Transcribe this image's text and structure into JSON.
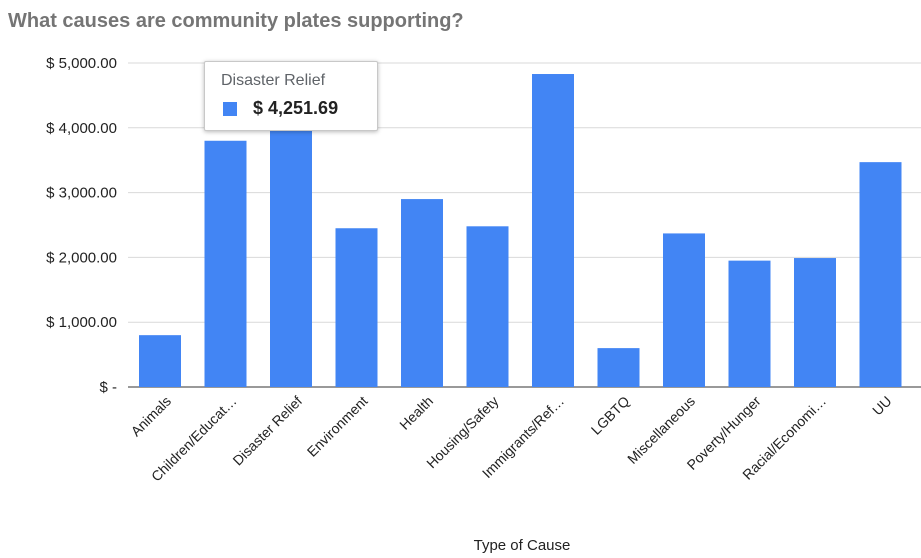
{
  "chart_data": {
    "type": "bar",
    "title": "What causes are community plates supporting?",
    "xlabel": "Type of Cause",
    "ylabel": "",
    "ylim": [
      0,
      5000
    ],
    "y_ticks": [
      0,
      1000,
      2000,
      3000,
      4000,
      5000
    ],
    "y_tick_labels": [
      "$ -",
      "$ 1,000.00",
      "$ 2,000.00",
      "$ 3,000.00",
      "$ 4,000.00",
      "$ 5,000.00"
    ],
    "grid": true,
    "legend": "none",
    "color": "#4285f4",
    "categories": [
      "Animals",
      "Children/Educat…",
      "Disaster Relief",
      "Environment",
      "Health",
      "Housing/Safety",
      "Immigrants/Ref…",
      "LGBTQ",
      "Miscellaneous",
      "Poverty/Hunger",
      "Racial/Economi…",
      "UU"
    ],
    "values": [
      800,
      3800,
      4251.69,
      2450,
      2900,
      2480,
      4830,
      600,
      2370,
      1950,
      1990,
      3470
    ]
  },
  "tooltip": {
    "category": "Disaster Relief",
    "value_label": "$ 4,251.69",
    "color": "#4285f4"
  }
}
